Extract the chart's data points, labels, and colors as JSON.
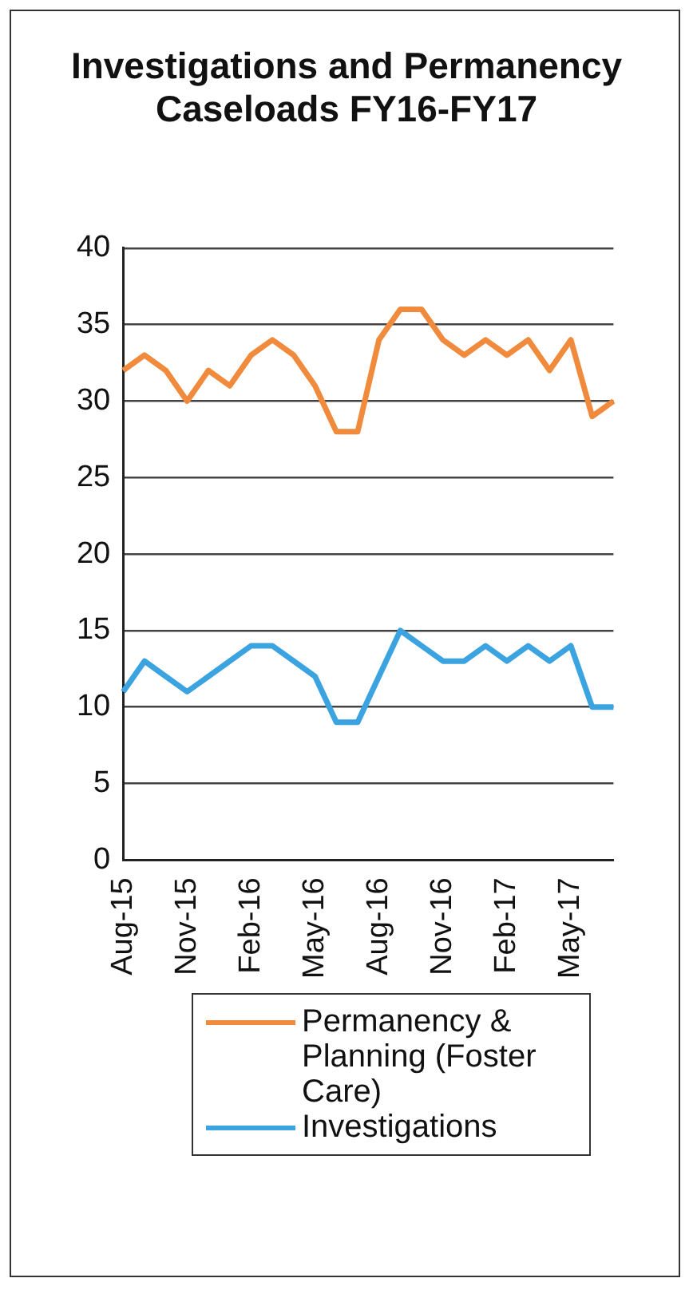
{
  "chart_data": {
    "type": "line",
    "title": "Investigations and Permanency Caseloads FY16-FY17",
    "categories": [
      "Aug-15",
      null,
      null,
      "Nov-15",
      null,
      null,
      "Feb-16",
      null,
      null,
      "May-16",
      null,
      null,
      "Aug-16",
      null,
      null,
      "Nov-16",
      null,
      null,
      "Feb-17",
      null,
      null,
      "May-17",
      null,
      null
    ],
    "series": [
      {
        "name": "Permanency & Planning (Foster Care)",
        "color": "#f08a3c",
        "values": [
          32,
          33,
          32,
          30,
          32,
          31,
          33,
          34,
          33,
          31,
          28,
          28,
          34,
          36,
          36,
          34,
          33,
          34,
          33,
          34,
          32,
          34,
          29,
          30
        ]
      },
      {
        "name": "Investigations",
        "color": "#3ba3e0",
        "values": [
          11,
          13,
          12,
          11,
          12,
          13,
          14,
          14,
          13,
          12,
          9,
          9,
          12,
          15,
          14,
          13,
          13,
          14,
          13,
          14,
          13,
          14,
          10,
          10
        ]
      }
    ],
    "ylim": [
      0,
      40
    ],
    "yticks": [
      0,
      5,
      10,
      15,
      20,
      25,
      30,
      35,
      40
    ],
    "grid": "y",
    "legend": "bottom",
    "marker": "none",
    "line_style": "solid"
  }
}
